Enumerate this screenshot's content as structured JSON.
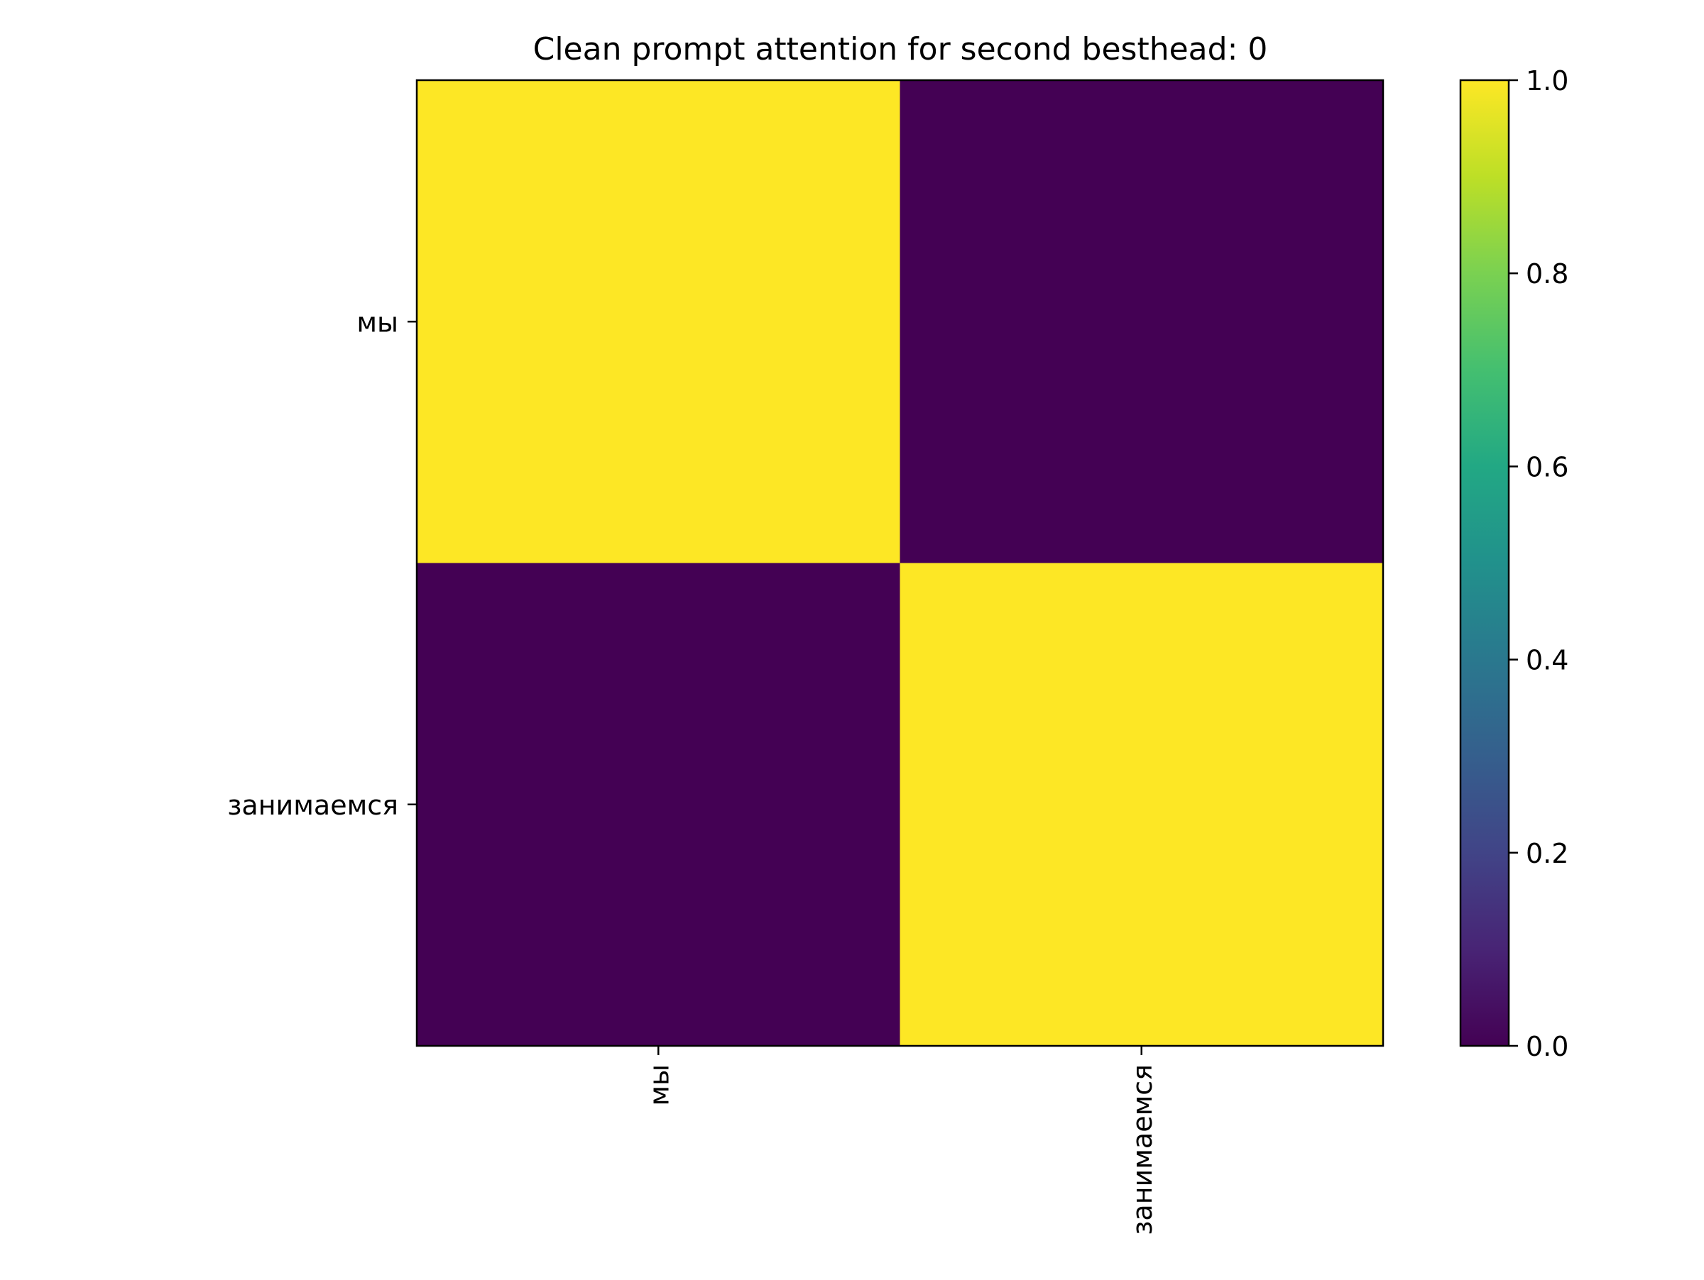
{
  "chart_data": {
    "type": "heatmap",
    "title": "Clean prompt attention for second besthead: 0",
    "x_categories": [
      "мы",
      "занимаемся"
    ],
    "y_categories": [
      "мы",
      "занимаемся"
    ],
    "values": [
      [
        1.0,
        0.0
      ],
      [
        0.0,
        1.0
      ]
    ],
    "colormap": "viridis",
    "colorbar": {
      "range": [
        0.0,
        1.0
      ],
      "ticks": [
        "0.0",
        "0.2",
        "0.4",
        "0.6",
        "0.8",
        "1.0"
      ]
    },
    "x_tick_rotation": "vertical",
    "grid": false
  }
}
